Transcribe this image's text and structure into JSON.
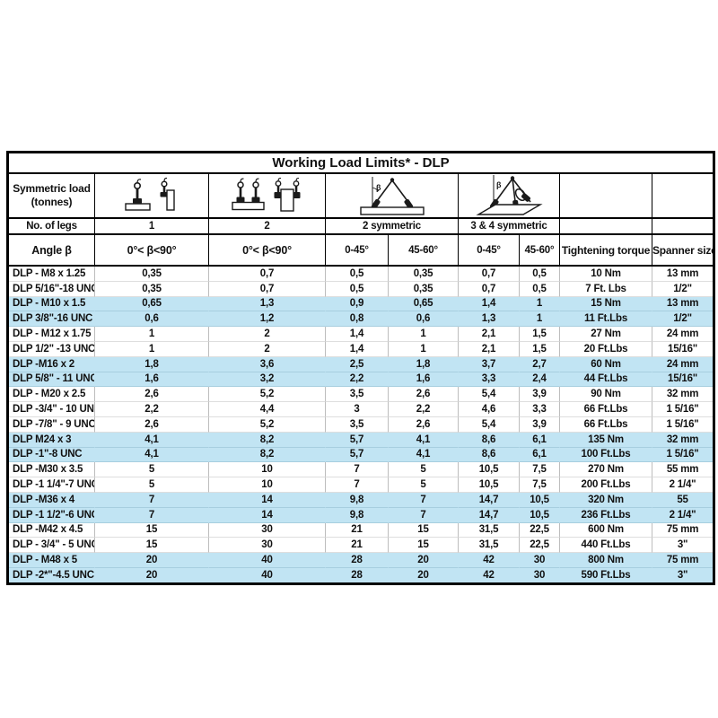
{
  "title": "Working Load Limits* - DLP",
  "header": {
    "symmetric_load_line1": "Symmetric load",
    "symmetric_load_line2": "(tonnes)",
    "no_of_legs_label": "No. of legs",
    "angle_label": "Angle β",
    "legs": [
      "1",
      "2",
      "2 symmetric",
      "3 & 4 symmetric"
    ],
    "angle_cols": [
      "0°< β<90°",
      "0°< β<90°",
      "0-45°",
      "45-60°",
      "0-45°",
      "45-60°"
    ],
    "tightening_torque_label": "Tightening torque",
    "spanner_size_label": "Spanner size",
    "icons": {
      "one_leg": "single-leg-lifting-point-icon",
      "two_legs": "two-leg-lifting-point-icon",
      "two_symmetric": "two-leg-symmetric-sling-icon",
      "three_four_symmetric": "three-four-leg-symmetric-sling-icon",
      "beta_label": "β"
    }
  },
  "colors": {
    "highlight_row": "#c1e4f3",
    "border": "#000000"
  },
  "rows": [
    {
      "model": "DLP - M8 x 1.25",
      "values": [
        "0,35",
        "0,7",
        "0,5",
        "0,35",
        "0,7",
        "0,5"
      ],
      "torque": "10 Nm",
      "spanner": "13 mm",
      "highlight": false
    },
    {
      "model": "DLP 5/16\"-18 UNC",
      "values": [
        "0,35",
        "0,7",
        "0,5",
        "0,35",
        "0,7",
        "0,5"
      ],
      "torque": "7 Ft. Lbs",
      "spanner": "1/2\"",
      "highlight": false
    },
    {
      "model": "DLP - M10 x 1.5",
      "values": [
        "0,65",
        "1,3",
        "0,9",
        "0,65",
        "1,4",
        "1"
      ],
      "torque": "15 Nm",
      "spanner": "13 mm",
      "highlight": true
    },
    {
      "model": "DLP 3/8\"-16 UNC",
      "values": [
        "0,6",
        "1,2",
        "0,8",
        "0,6",
        "1,3",
        "1"
      ],
      "torque": "11 Ft.Lbs",
      "spanner": "1/2\"",
      "highlight": true
    },
    {
      "model": "DLP - M12 x 1.75",
      "values": [
        "1",
        "2",
        "1,4",
        "1",
        "2,1",
        "1,5"
      ],
      "torque": "27 Nm",
      "spanner": "24 mm",
      "highlight": false
    },
    {
      "model": "DLP 1/2\" -13 UNC",
      "values": [
        "1",
        "2",
        "1,4",
        "1",
        "2,1",
        "1,5"
      ],
      "torque": "20 Ft.Lbs",
      "spanner": "15/16\"",
      "highlight": false
    },
    {
      "model": "DLP -M16 x 2",
      "values": [
        "1,8",
        "3,6",
        "2,5",
        "1,8",
        "3,7",
        "2,7"
      ],
      "torque": "60 Nm",
      "spanner": "24 mm",
      "highlight": true
    },
    {
      "model": "DLP 5/8\" - 11 UNC",
      "values": [
        "1,6",
        "3,2",
        "2,2",
        "1,6",
        "3,3",
        "2,4"
      ],
      "torque": "44 Ft.Lbs",
      "spanner": "15/16\"",
      "highlight": true
    },
    {
      "model": "DLP - M20 x 2.5",
      "values": [
        "2,6",
        "5,2",
        "3,5",
        "2,6",
        "5,4",
        "3,9"
      ],
      "torque": "90 Nm",
      "spanner": "32 mm",
      "highlight": false
    },
    {
      "model": "DLP -3/4\" - 10 UNC",
      "values": [
        "2,2",
        "4,4",
        "3",
        "2,2",
        "4,6",
        "3,3"
      ],
      "torque": "66 Ft.Lbs",
      "spanner": "1 5/16\"",
      "highlight": false
    },
    {
      "model": "DLP -7/8\" - 9 UNC",
      "values": [
        "2,6",
        "5,2",
        "3,5",
        "2,6",
        "5,4",
        "3,9"
      ],
      "torque": "66 Ft.Lbs",
      "spanner": "1 5/16\"",
      "highlight": false
    },
    {
      "model": "DLP M24 x 3",
      "values": [
        "4,1",
        "8,2",
        "5,7",
        "4,1",
        "8,6",
        "6,1"
      ],
      "torque": "135 Nm",
      "spanner": "32 mm",
      "highlight": true
    },
    {
      "model": "DLP -1\"-8 UNC",
      "values": [
        "4,1",
        "8,2",
        "5,7",
        "4,1",
        "8,6",
        "6,1"
      ],
      "torque": "100 Ft.Lbs",
      "spanner": "1 5/16\"",
      "highlight": true
    },
    {
      "model": "DLP -M30 x 3.5",
      "values": [
        "5",
        "10",
        "7",
        "5",
        "10,5",
        "7,5"
      ],
      "torque": "270 Nm",
      "spanner": "55 mm",
      "highlight": false
    },
    {
      "model": "DLP -1 1/4\"-7 UNC",
      "values": [
        "5",
        "10",
        "7",
        "5",
        "10,5",
        "7,5"
      ],
      "torque": "200 Ft.Lbs",
      "spanner": "2 1/4\"",
      "highlight": false
    },
    {
      "model": "DLP -M36 x 4",
      "values": [
        "7",
        "14",
        "9,8",
        "7",
        "14,7",
        "10,5"
      ],
      "torque": "320 Nm",
      "spanner": "55",
      "highlight": true
    },
    {
      "model": "DLP -1 1/2\"-6 UNC",
      "values": [
        "7",
        "14",
        "9,8",
        "7",
        "14,7",
        "10,5"
      ],
      "torque": "236 Ft.Lbs",
      "spanner": "2 1/4\"",
      "highlight": true
    },
    {
      "model": "DLP -M42 x 4.5",
      "values": [
        "15",
        "30",
        "21",
        "15",
        "31,5",
        "22,5"
      ],
      "torque": "600 Nm",
      "spanner": "75 mm",
      "highlight": false
    },
    {
      "model": "DLP - 3/4\" - 5 UNC",
      "values": [
        "15",
        "30",
        "21",
        "15",
        "31,5",
        "22,5"
      ],
      "torque": "440 Ft.Lbs",
      "spanner": "3\"",
      "highlight": false
    },
    {
      "model": "DLP - M48 x 5",
      "values": [
        "20",
        "40",
        "28",
        "20",
        "42",
        "30"
      ],
      "torque": "800 Nm",
      "spanner": "75 mm",
      "highlight": true
    },
    {
      "model": "DLP -2*\"-4.5 UNC",
      "values": [
        "20",
        "40",
        "28",
        "20",
        "42",
        "30"
      ],
      "torque": "590 Ft.Lbs",
      "spanner": "3\"",
      "highlight": true
    }
  ]
}
